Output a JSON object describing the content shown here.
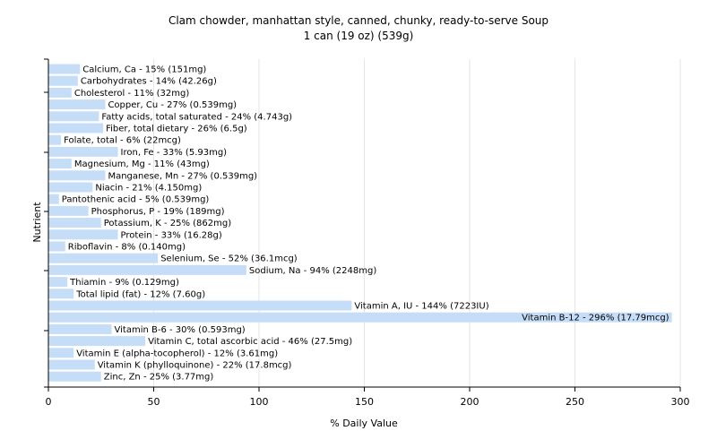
{
  "chart_data": {
    "type": "bar",
    "orientation": "horizontal",
    "title": "Clam chowder, manhattan style, canned, chunky, ready-to-serve Soup",
    "subtitle": "1 can (19 oz) (539g)",
    "xlabel": "% Daily Value",
    "ylabel": "Nutrient",
    "xlim": [
      0,
      300
    ],
    "xticks": [
      0,
      50,
      100,
      150,
      200,
      250,
      300
    ],
    "grid": true,
    "colors": {
      "bar": "#c6ddf7",
      "grid": "#e6e6e6",
      "axis": "#000000"
    },
    "categories": [
      "Calcium, Ca - 15% (151mg)",
      "Carbohydrates - 14% (42.26g)",
      "Cholesterol - 11% (32mg)",
      "Copper, Cu - 27% (0.539mg)",
      "Fatty acids, total saturated - 24% (4.743g)",
      "Fiber, total dietary - 26% (6.5g)",
      "Folate, total - 6% (22mcg)",
      "Iron, Fe - 33% (5.93mg)",
      "Magnesium, Mg - 11% (43mg)",
      "Manganese, Mn - 27% (0.539mg)",
      "Niacin - 21% (4.150mg)",
      "Pantothenic acid - 5% (0.539mg)",
      "Phosphorus, P - 19% (189mg)",
      "Potassium, K - 25% (862mg)",
      "Protein - 33% (16.28g)",
      "Riboflavin - 8% (0.140mg)",
      "Selenium, Se - 52% (36.1mcg)",
      "Sodium, Na - 94% (2248mg)",
      "Thiamin - 9% (0.129mg)",
      "Total lipid (fat) - 12% (7.60g)",
      "Vitamin A, IU - 144% (7223IU)",
      "Vitamin B-12 - 296% (17.79mcg)",
      "Vitamin B-6 - 30% (0.593mg)",
      "Vitamin C, total ascorbic acid - 46% (27.5mg)",
      "Vitamin E (alpha-tocopherol) - 12% (3.61mg)",
      "Vitamin K (phylloquinone) - 22% (17.8mcg)",
      "Zinc, Zn - 25% (3.77mg)"
    ],
    "values": [
      15,
      14,
      11,
      27,
      24,
      26,
      6,
      33,
      11,
      27,
      21,
      5,
      19,
      25,
      33,
      8,
      52,
      94,
      9,
      12,
      144,
      296,
      30,
      46,
      12,
      22,
      25
    ]
  }
}
